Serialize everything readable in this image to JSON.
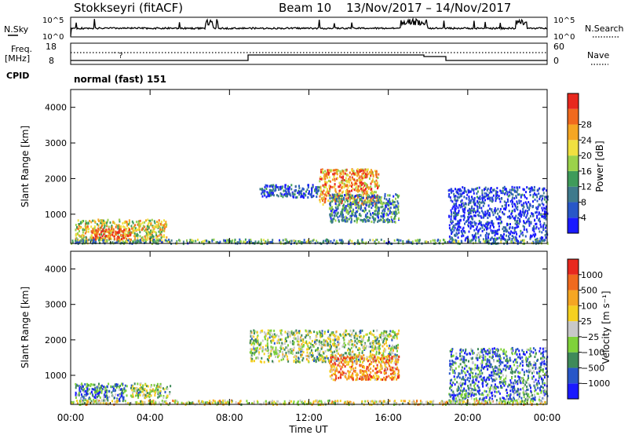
{
  "header": {
    "radar": "Stokkseyri (fitACF)",
    "beam": "Beam 10",
    "dates": "13/Nov/2017 – 14/Nov/2017"
  },
  "top_panels": {
    "nsky_label": "N.Sky",
    "nsearch_label": "N.Search",
    "nsky_ticks": [
      "10^5",
      "10^0"
    ],
    "freq_label_1": "Freq.",
    "freq_label_2": "[MHz]",
    "freq_ticks": [
      "18",
      "8"
    ],
    "nave_label": "Nave",
    "nave_ticks": [
      "60",
      "0"
    ],
    "cpid_label": "CPID",
    "cpid_value": "normal (fast) 151"
  },
  "chart_data": [
    {
      "type": "heatmap",
      "name": "power",
      "ylabel": "Slant Range [km]",
      "xlabel": "",
      "x_ticks": [
        "00:00",
        "04:00",
        "08:00",
        "12:00",
        "16:00",
        "20:00",
        "00:00"
      ],
      "x_range_hours": [
        0,
        24
      ],
      "y_ticks": [
        1000,
        2000,
        3000,
        4000
      ],
      "y_range": [
        180,
        4500
      ],
      "colorbar": {
        "label": "Power [dB]",
        "ticks": [
          "4",
          "8",
          "12",
          "16",
          "20",
          "24",
          "28"
        ],
        "colors": [
          "#1a1aff",
          "#2857c8",
          "#3f7a8c",
          "#3f9b5a",
          "#9bd24a",
          "#f0e040",
          "#f5a623",
          "#f06a1e",
          "#e8281e"
        ]
      },
      "regions": [
        {
          "t": [
            0.2,
            4.8
          ],
          "r": [
            280,
            880
          ],
          "tone": 0.6
        },
        {
          "t": [
            1.0,
            3.0
          ],
          "r": [
            330,
            620
          ],
          "tone": 0.9
        },
        {
          "t": [
            12.5,
            15.5
          ],
          "r": [
            1300,
            2300
          ],
          "tone": 0.75
        },
        {
          "t": [
            9.5,
            12.5
          ],
          "r": [
            1500,
            1850
          ],
          "tone": 0.15
        },
        {
          "t": [
            13.0,
            16.5
          ],
          "r": [
            800,
            1600
          ],
          "tone": 0.3
        },
        {
          "t": [
            19.0,
            24.0
          ],
          "r": [
            300,
            1800
          ],
          "tone": 0.1
        },
        {
          "t": [
            0.0,
            24.0
          ],
          "r": [
            200,
            320
          ],
          "tone": 0.35
        }
      ]
    },
    {
      "type": "heatmap",
      "name": "velocity",
      "ylabel": "Slant Range [km]",
      "xlabel": "Time UT",
      "x_ticks": [
        "00:00",
        "04:00",
        "08:00",
        "12:00",
        "16:00",
        "20:00",
        "00:00"
      ],
      "x_range_hours": [
        0,
        24
      ],
      "y_ticks": [
        1000,
        2000,
        3000,
        4000
      ],
      "y_range": [
        180,
        4500
      ],
      "colorbar": {
        "label": "Velocity [m s⁻¹]",
        "ticks": [
          "1000",
          "500",
          "100",
          "25",
          "−25",
          "−100",
          "−500",
          "−1000"
        ],
        "colors": [
          "#1a1aff",
          "#2857c8",
          "#3f8a5a",
          "#7fd23a",
          "#c8c8c8",
          "#f5d020",
          "#f5a623",
          "#f06a1e",
          "#e8281e"
        ]
      },
      "regions": [
        {
          "t": [
            0.2,
            2.8
          ],
          "r": [
            300,
            800
          ],
          "tone": 0.25
        },
        {
          "t": [
            3.0,
            5.0
          ],
          "r": [
            400,
            800
          ],
          "tone": 0.45
        },
        {
          "t": [
            9.0,
            16.5
          ],
          "r": [
            1400,
            2300
          ],
          "tone": 0.45
        },
        {
          "t": [
            13.0,
            16.5
          ],
          "r": [
            900,
            1600
          ],
          "tone": 0.75
        },
        {
          "t": [
            19.0,
            24.0
          ],
          "r": [
            300,
            1800
          ],
          "tone": 0.25
        },
        {
          "t": [
            0.0,
            24.0
          ],
          "r": [
            200,
            320
          ],
          "tone": 0.55
        }
      ]
    }
  ]
}
